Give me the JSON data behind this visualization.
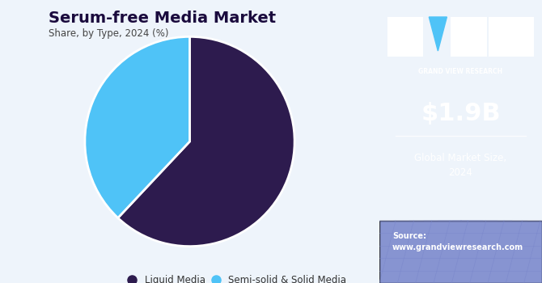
{
  "title": "Serum-free Media Market",
  "subtitle": "Share, by Type, 2024 (%)",
  "slices": [
    62,
    38
  ],
  "labels": [
    "Liquid Media",
    "Semi-solid & Solid Media"
  ],
  "colors": [
    "#2d1b4e",
    "#4fc3f7"
  ],
  "startangle": 90,
  "bg_color": "#eef4fb",
  "right_panel_color": "#3b1f6e",
  "right_panel_bottom_color": "#5c6bc0",
  "market_size": "$1.9B",
  "market_label": "Global Market Size,\n2024",
  "source_text": "Source:\nwww.grandviewresearch.com",
  "title_color": "#1a0a3d",
  "subtitle_color": "#444444",
  "legend_dot_colors": [
    "#2d1b4e",
    "#4fc3f7"
  ]
}
